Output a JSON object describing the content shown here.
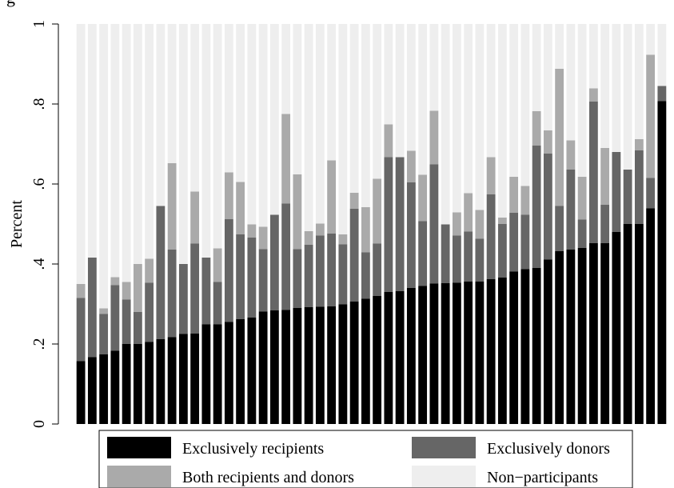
{
  "caption_fragment": "g",
  "chart_data": {
    "type": "bar",
    "stacked": true,
    "title": "",
    "xlabel": "",
    "ylabel": "Percent",
    "ylim": [
      0,
      1
    ],
    "yticks": [
      0,
      0.2,
      0.4,
      0.6,
      0.8,
      1
    ],
    "ytick_labels": [
      "0",
      ".2",
      ".4",
      ".6",
      ".8",
      "1"
    ],
    "grid": false,
    "legend_position": "bottom",
    "series": [
      {
        "name": "Exclusively recipients",
        "color": "#000000",
        "values": [
          0.157,
          0.167,
          0.174,
          0.183,
          0.2,
          0.2,
          0.205,
          0.212,
          0.217,
          0.225,
          0.226,
          0.249,
          0.249,
          0.255,
          0.262,
          0.266,
          0.281,
          0.284,
          0.285,
          0.29,
          0.292,
          0.293,
          0.294,
          0.299,
          0.306,
          0.313,
          0.32,
          0.33,
          0.332,
          0.34,
          0.345,
          0.351,
          0.352,
          0.353,
          0.356,
          0.356,
          0.362,
          0.366,
          0.381,
          0.387,
          0.39,
          0.411,
          0.432,
          0.436,
          0.44,
          0.452,
          0.452,
          0.48,
          0.5,
          0.5,
          0.539,
          0.807
        ]
      },
      {
        "name": "Exclusively donors",
        "color": "#666666",
        "values": [
          0.158,
          0.249,
          0.101,
          0.164,
          0.111,
          0.08,
          0.148,
          0.333,
          0.219,
          0.175,
          0.225,
          0.167,
          0.106,
          0.257,
          0.212,
          0.2,
          0.156,
          0.239,
          0.266,
          0.147,
          0.156,
          0.178,
          0.182,
          0.15,
          0.232,
          0.116,
          0.131,
          0.337,
          0.335,
          0.264,
          0.162,
          0.298,
          0.147,
          0.118,
          0.125,
          0.107,
          0.212,
          0.134,
          0.147,
          0.136,
          0.306,
          0.265,
          0.113,
          0.2,
          0.071,
          0.354,
          0.096,
          0.2,
          0.136,
          0.184,
          0.076,
          0.038
        ]
      },
      {
        "name": "Both recipients and donors",
        "color": "#aaaaaa",
        "values": [
          0.035,
          0.0,
          0.014,
          0.02,
          0.044,
          0.12,
          0.06,
          0.0,
          0.216,
          0.0,
          0.13,
          0.0,
          0.084,
          0.117,
          0.131,
          0.033,
          0.056,
          0.0,
          0.224,
          0.187,
          0.034,
          0.03,
          0.183,
          0.025,
          0.04,
          0.113,
          0.162,
          0.082,
          0.0,
          0.079,
          0.116,
          0.134,
          0.0,
          0.058,
          0.096,
          0.072,
          0.093,
          0.016,
          0.09,
          0.072,
          0.086,
          0.058,
          0.343,
          0.073,
          0.107,
          0.033,
          0.142,
          0.0,
          0.0,
          0.028,
          0.308,
          0.0
        ]
      },
      {
        "name": "Non−participants",
        "color": "#eeeeee",
        "values": [
          0.65,
          0.584,
          0.711,
          0.633,
          0.645,
          0.6,
          0.587,
          0.455,
          0.348,
          0.6,
          0.419,
          0.584,
          0.561,
          0.371,
          0.395,
          0.501,
          0.507,
          0.477,
          0.225,
          0.376,
          0.518,
          0.499,
          0.341,
          0.526,
          0.422,
          0.458,
          0.387,
          0.251,
          0.333,
          0.317,
          0.377,
          0.217,
          0.501,
          0.471,
          0.423,
          0.465,
          0.333,
          0.484,
          0.382,
          0.405,
          0.218,
          0.266,
          0.112,
          0.291,
          0.382,
          0.161,
          0.31,
          0.32,
          0.364,
          0.288,
          0.077,
          0.155
        ]
      }
    ]
  },
  "legend": {
    "items": [
      {
        "label": "Exclusively recipients",
        "color": "#000000"
      },
      {
        "label": "Exclusively donors",
        "color": "#666666"
      },
      {
        "label": "Both recipients and donors",
        "color": "#aaaaaa"
      },
      {
        "label": "Non−participants",
        "color": "#eeeeee"
      }
    ]
  }
}
